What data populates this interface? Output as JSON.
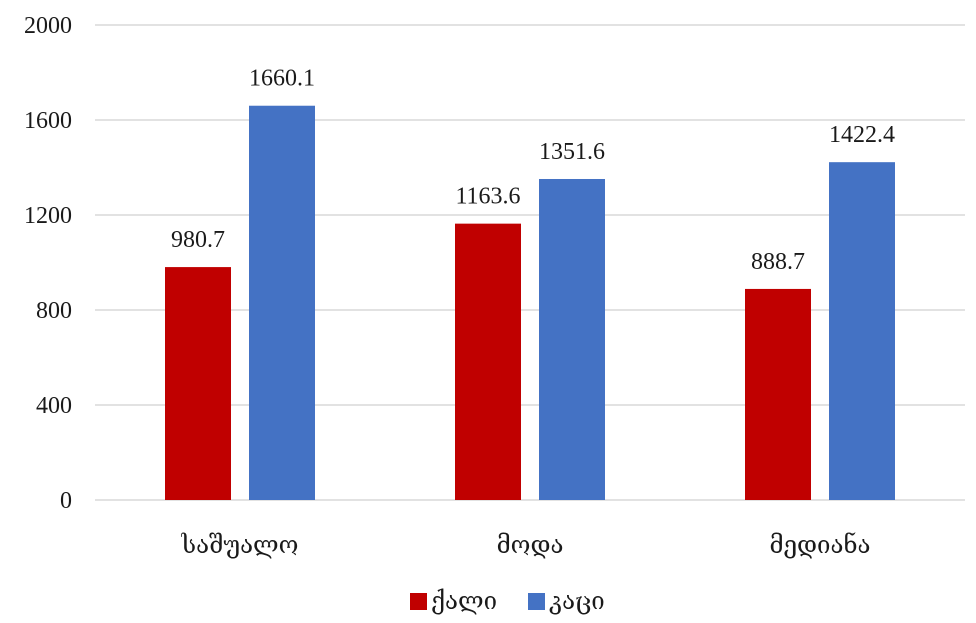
{
  "chart_data": {
    "type": "bar",
    "title": "",
    "xlabel": "",
    "ylabel": "",
    "categories": [
      "საშუალო",
      "მოდა",
      "მედიანა"
    ],
    "series": [
      {
        "name": "ქალი",
        "values": [
          980.7,
          1163.6,
          888.7
        ],
        "color": "#C00000"
      },
      {
        "name": "კაცი",
        "values": [
          1660.1,
          1351.6,
          1422.4
        ],
        "color": "#4472C4"
      }
    ],
    "ylim": [
      0,
      2000
    ],
    "yticks": [
      0,
      400,
      800,
      1200,
      1600,
      2000
    ],
    "grid": true,
    "legend": "bottom",
    "data_labels": true
  }
}
